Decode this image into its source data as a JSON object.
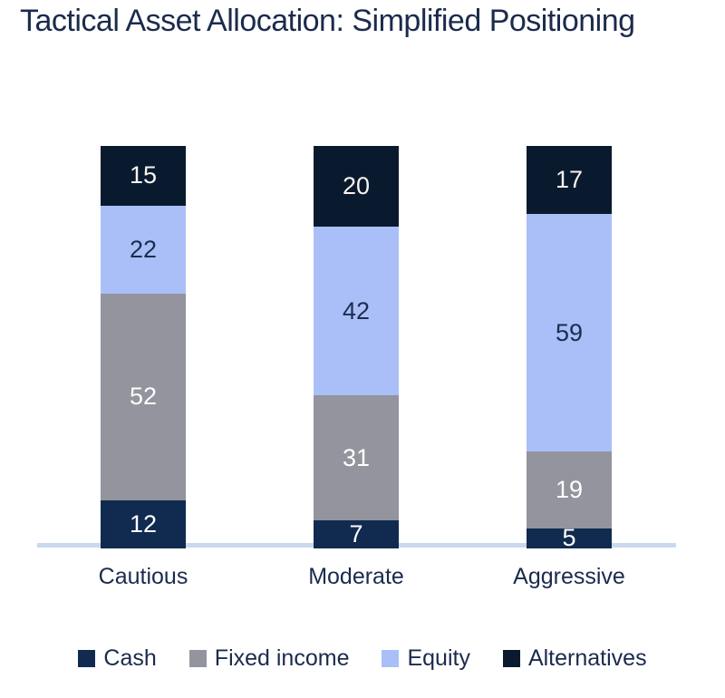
{
  "title": "Tactical Asset Allocation: Simplified Positioning",
  "colors": {
    "title_text": "#1b2b4d",
    "axis_label_text": "#1b2b4d",
    "legend_text": "#1b2b4d",
    "axis_line": "#c9d9ee",
    "background": "#ffffff"
  },
  "chart_data": {
    "type": "bar",
    "stacked": true,
    "value_labels": true,
    "grid": false,
    "legend_position": "bottom",
    "ylim": [
      0,
      100
    ],
    "title": "Tactical Asset Allocation: Simplified Positioning",
    "xlabel": "",
    "ylabel": "",
    "categories": [
      "Cautious",
      "Moderate",
      "Aggressive"
    ],
    "series": [
      {
        "name": "Cash",
        "color": "#112a4f",
        "label_color": "#ffffff",
        "values": [
          12,
          7,
          5
        ]
      },
      {
        "name": "Fixed income",
        "color": "#93949d",
        "label_color": "#ffffff",
        "values": [
          52,
          31,
          19
        ]
      },
      {
        "name": "Equity",
        "color": "#aabff8",
        "label_color": "#1b2d4f",
        "values": [
          22,
          42,
          59
        ]
      },
      {
        "name": "Alternatives",
        "color": "#0a1a2e",
        "label_color": "#f8f4ed",
        "values": [
          15,
          20,
          17
        ]
      }
    ]
  }
}
